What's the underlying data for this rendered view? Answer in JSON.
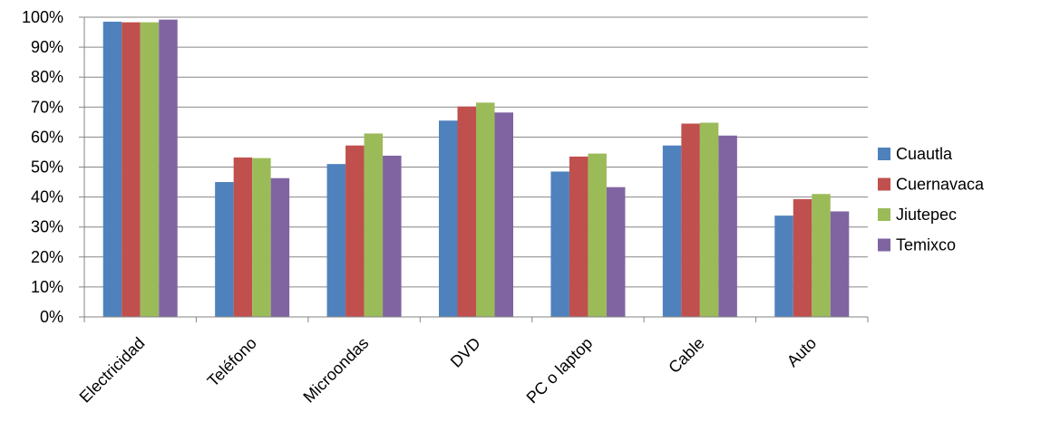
{
  "chart_data": {
    "type": "bar",
    "title": "",
    "xlabel": "",
    "ylabel": "",
    "categories": [
      "Electricidad",
      "Teléfono",
      "Microondas",
      "DVD",
      "PC o laptop",
      "Cable",
      "Auto"
    ],
    "series": [
      {
        "name": "Cuautla",
        "color": "#4F81BD",
        "values": [
          98.5,
          45.0,
          51.0,
          65.5,
          48.5,
          57.2,
          33.8
        ]
      },
      {
        "name": "Cuernavaca",
        "color": "#C0504D",
        "values": [
          98.3,
          53.2,
          57.2,
          70.2,
          53.5,
          64.5,
          39.3
        ]
      },
      {
        "name": "Jiutepec",
        "color": "#9BBB59",
        "values": [
          98.3,
          53.0,
          61.2,
          71.5,
          54.5,
          64.8,
          41.0
        ]
      },
      {
        "name": "Temixco",
        "color": "#8064A2",
        "values": [
          99.2,
          46.3,
          53.8,
          68.2,
          43.3,
          60.5,
          35.2
        ]
      }
    ],
    "yticks": [
      "0%",
      "10%",
      "20%",
      "30%",
      "40%",
      "50%",
      "60%",
      "70%",
      "80%",
      "90%",
      "100%"
    ],
    "ylim": [
      0,
      100
    ],
    "grid": true,
    "legend_position": "right"
  }
}
